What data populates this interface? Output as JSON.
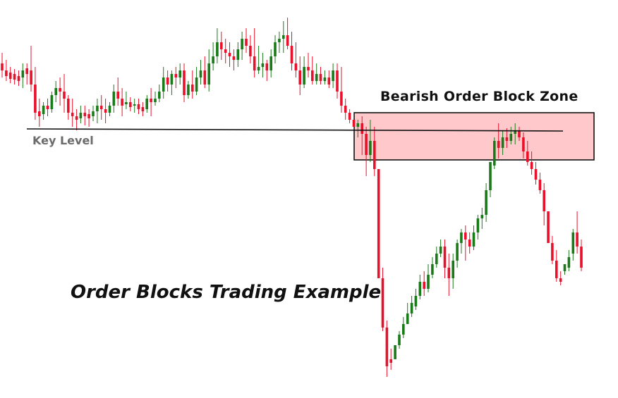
{
  "labels": {
    "zone": "Bearish Order Block Zone",
    "key_level": "Key Level",
    "title": "Order Blocks Trading Example"
  },
  "colors": {
    "bull": "#1a7a1a",
    "bear": "#e8102a",
    "zone_fill": "#ffc9cc",
    "zone_border": "#111111",
    "line": "#111111",
    "background": "#ffffff"
  },
  "chart_data": {
    "type": "candlestick",
    "title": "Order Blocks Trading Example",
    "annotations": [
      "Bearish Order Block Zone",
      "Key Level"
    ],
    "key_level": 183,
    "zone": {
      "top": 160,
      "bottom": 227
    },
    "y_inverted": true,
    "candles": [
      [
        90,
        75,
        100,
        110
      ],
      [
        100,
        85,
        108,
        115
      ],
      [
        103,
        95,
        112,
        118
      ],
      [
        105,
        98,
        113,
        120
      ],
      [
        108,
        100,
        115,
        122
      ],
      [
        110,
        90,
        100,
        125
      ],
      [
        97,
        90,
        105,
        120
      ],
      [
        100,
        65,
        120,
        130
      ],
      [
        120,
        95,
        160,
        170
      ],
      [
        158,
        140,
        165,
        180
      ],
      [
        162,
        145,
        150,
        170
      ],
      [
        150,
        140,
        155,
        165
      ],
      [
        155,
        130,
        135,
        160
      ],
      [
        135,
        115,
        125,
        145
      ],
      [
        125,
        110,
        130,
        150
      ],
      [
        130,
        105,
        140,
        160
      ],
      [
        140,
        135,
        160,
        170
      ],
      [
        160,
        140,
        165,
        180
      ],
      [
        165,
        155,
        170,
        185
      ],
      [
        168,
        150,
        160,
        175
      ],
      [
        160,
        150,
        165,
        178
      ],
      [
        162,
        155,
        168,
        180
      ],
      [
        165,
        150,
        158,
        172
      ],
      [
        158,
        140,
        150,
        175
      ],
      [
        150,
        135,
        155,
        170
      ],
      [
        155,
        140,
        160,
        175
      ],
      [
        160,
        145,
        150,
        165
      ],
      [
        150,
        120,
        130,
        160
      ],
      [
        130,
        110,
        140,
        150
      ],
      [
        140,
        125,
        150,
        165
      ],
      [
        148,
        130,
        145,
        155
      ],
      [
        145,
        138,
        152,
        158
      ],
      [
        150,
        140,
        148,
        160
      ],
      [
        148,
        140,
        155,
        162
      ],
      [
        152,
        145,
        158,
        165
      ],
      [
        155,
        135,
        140,
        160
      ],
      [
        140,
        125,
        145,
        165
      ],
      [
        145,
        130,
        140,
        150
      ],
      [
        140,
        120,
        130,
        145
      ],
      [
        130,
        95,
        110,
        140
      ],
      [
        110,
        100,
        120,
        130
      ],
      [
        120,
        100,
        105,
        135
      ],
      [
        105,
        95,
        110,
        125
      ],
      [
        110,
        90,
        100,
        120
      ],
      [
        100,
        90,
        135,
        145
      ],
      [
        135,
        115,
        120,
        140
      ],
      [
        120,
        100,
        130,
        140
      ],
      [
        130,
        95,
        110,
        135
      ],
      [
        110,
        85,
        100,
        120
      ],
      [
        100,
        80,
        120,
        125
      ],
      [
        120,
        70,
        90,
        130
      ],
      [
        90,
        60,
        80,
        100
      ],
      [
        80,
        40,
        60,
        90
      ],
      [
        60,
        45,
        70,
        85
      ],
      [
        70,
        55,
        75,
        90
      ],
      [
        75,
        60,
        80,
        95
      ],
      [
        80,
        70,
        85,
        100
      ],
      [
        85,
        60,
        70,
        95
      ],
      [
        70,
        45,
        55,
        85
      ],
      [
        55,
        40,
        65,
        75
      ],
      [
        65,
        50,
        80,
        90
      ],
      [
        80,
        40,
        100,
        110
      ],
      [
        100,
        65,
        95,
        105
      ],
      [
        95,
        75,
        90,
        110
      ],
      [
        90,
        85,
        100,
        115
      ],
      [
        100,
        70,
        80,
        110
      ],
      [
        80,
        50,
        60,
        90
      ],
      [
        60,
        45,
        55,
        75
      ],
      [
        55,
        30,
        50,
        75
      ],
      [
        50,
        25,
        65,
        70
      ],
      [
        65,
        45,
        90,
        100
      ],
      [
        90,
        60,
        100,
        110
      ],
      [
        100,
        80,
        120,
        135
      ],
      [
        120,
        80,
        95,
        125
      ],
      [
        95,
        75,
        100,
        110
      ],
      [
        100,
        80,
        115,
        120
      ],
      [
        115,
        90,
        105,
        120
      ],
      [
        105,
        95,
        115,
        120
      ],
      [
        115,
        100,
        110,
        120
      ],
      [
        110,
        100,
        120,
        125
      ],
      [
        115,
        90,
        100,
        125
      ],
      [
        100,
        90,
        130,
        140
      ],
      [
        130,
        95,
        150,
        160
      ],
      [
        150,
        140,
        160,
        170
      ],
      [
        160,
        155,
        170,
        175
      ],
      [
        170,
        160,
        180,
        185
      ],
      [
        180,
        170,
        175,
        195
      ],
      [
        175,
        165,
        190,
        220
      ],
      [
        190,
        180,
        220,
        250
      ],
      [
        220,
        170,
        200,
        230
      ],
      [
        200,
        180,
        240,
        250
      ],
      [
        240,
        245,
        395,
        395
      ],
      [
        395,
        380,
        465,
        470
      ],
      [
        465,
        455,
        520,
        535
      ],
      [
        510,
        495,
        515,
        525
      ],
      [
        510,
        490,
        490,
        505
      ],
      [
        490,
        470,
        475,
        495
      ],
      [
        475,
        450,
        460,
        480
      ],
      [
        460,
        430,
        445,
        460
      ],
      [
        445,
        420,
        430,
        450
      ],
      [
        435,
        410,
        420,
        440
      ],
      [
        420,
        390,
        400,
        425
      ],
      [
        400,
        385,
        410,
        420
      ],
      [
        410,
        375,
        390,
        415
      ],
      [
        390,
        365,
        375,
        395
      ],
      [
        375,
        350,
        360,
        380
      ],
      [
        360,
        340,
        350,
        365
      ],
      [
        350,
        340,
        380,
        395
      ],
      [
        380,
        360,
        395,
        420
      ],
      [
        395,
        360,
        370,
        410
      ],
      [
        370,
        340,
        345,
        380
      ],
      [
        345,
        325,
        330,
        360
      ],
      [
        330,
        320,
        340,
        370
      ],
      [
        340,
        330,
        350,
        360
      ],
      [
        350,
        320,
        330,
        355
      ],
      [
        330,
        305,
        310,
        340
      ],
      [
        310,
        295,
        305,
        325
      ],
      [
        305,
        260,
        270,
        315
      ],
      [
        270,
        240,
        230,
        280
      ],
      [
        235,
        195,
        200,
        240
      ],
      [
        200,
        175,
        210,
        225
      ],
      [
        210,
        185,
        195,
        220
      ],
      [
        195,
        182,
        200,
        210
      ],
      [
        200,
        180,
        190,
        205
      ],
      [
        190,
        175,
        185,
        205
      ],
      [
        185,
        180,
        195,
        200
      ],
      [
        195,
        188,
        215,
        225
      ],
      [
        215,
        200,
        230,
        235
      ],
      [
        230,
        215,
        240,
        248
      ],
      [
        240,
        230,
        255,
        262
      ],
      [
        255,
        245,
        270,
        275
      ],
      [
        270,
        260,
        300,
        320
      ],
      [
        300,
        320,
        345,
        345
      ],
      [
        345,
        335,
        370,
        375
      ],
      [
        370,
        355,
        395,
        400
      ],
      [
        395,
        385,
        400,
        405
      ],
      [
        385,
        380,
        375,
        390
      ],
      [
        380,
        355,
        365,
        385
      ],
      [
        360,
        325,
        330,
        370
      ],
      [
        330,
        300,
        350,
        360
      ],
      [
        350,
        340,
        380,
        385
      ]
    ],
    "candle_columns": [
      [
        2,
        110,
        116,
        10,
        90
      ],
      [
        7,
        120,
        116,
        10,
        100
      ],
      [
        12,
        125,
        116,
        10,
        103
      ],
      [
        17,
        132,
        118,
        10,
        105
      ],
      [
        22,
        138,
        120,
        10,
        108
      ],
      [
        27,
        142,
        122,
        8,
        110
      ],
      [
        33,
        128,
        120,
        8,
        97
      ],
      [
        38,
        130,
        130,
        9,
        100
      ],
      [
        43,
        80,
        170,
        10,
        120
      ],
      [
        48,
        85,
        180,
        10,
        158
      ],
      [
        53,
        90,
        170,
        10,
        162
      ],
      [
        58,
        100,
        165,
        10,
        150
      ],
      [
        63,
        115,
        160,
        10,
        155
      ],
      [
        68,
        125,
        145,
        10,
        135
      ],
      [
        73,
        130,
        150,
        10,
        125
      ],
      [
        78,
        125,
        160,
        10,
        130
      ],
      [
        83,
        115,
        170,
        10,
        140
      ],
      [
        88,
        110,
        180,
        10,
        160
      ],
      [
        93,
        110,
        185,
        10,
        165
      ],
      [
        98,
        120,
        175,
        10,
        168
      ]
    ]
  }
}
